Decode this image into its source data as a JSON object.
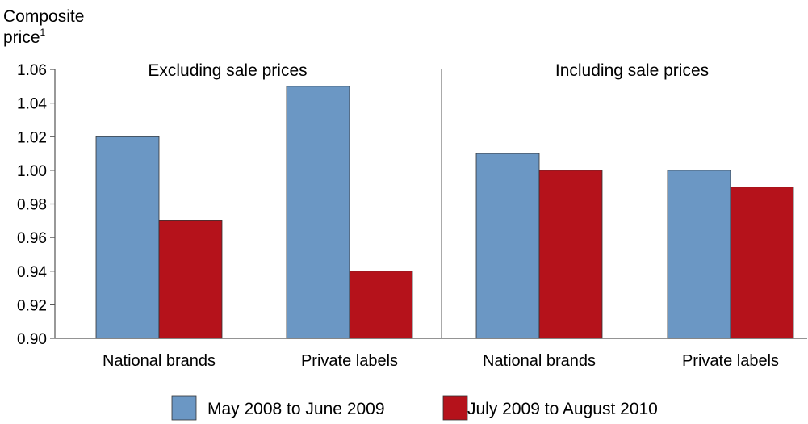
{
  "chart_data": {
    "type": "bar",
    "ylabel_line1": "Composite",
    "ylabel_line2": "price",
    "ylabel_sup": "1",
    "ylim": [
      0.9,
      1.06
    ],
    "yticks": [
      "1.06",
      "1.04",
      "1.02",
      "1.00",
      "0.98",
      "0.96",
      "0.94",
      "0.92",
      "0.90"
    ],
    "grid": false,
    "legend_position": "bottom",
    "colors": {
      "series0": "#6b97c4",
      "series1": "#b5121b",
      "axis": "#555555",
      "bar_edge": "#333333"
    },
    "series": [
      {
        "name": "May 2008 to June 2009"
      },
      {
        "name": "July 2009 to August 2010"
      }
    ],
    "panels": [
      {
        "title": "Excluding sale prices",
        "categories": [
          "National brands",
          "Private labels"
        ],
        "values": [
          [
            1.02,
            1.05
          ],
          [
            0.97,
            0.94
          ]
        ]
      },
      {
        "title": "Including sale prices",
        "categories": [
          "National brands",
          "Private labels"
        ],
        "values": [
          [
            1.01,
            1.0
          ],
          [
            1.0,
            0.99
          ]
        ]
      }
    ]
  }
}
